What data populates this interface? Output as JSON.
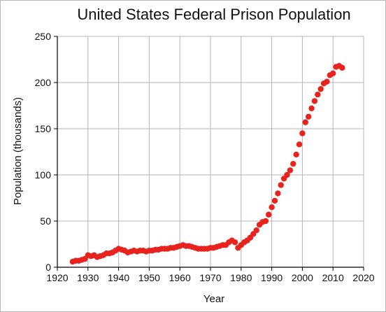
{
  "chart_data": {
    "type": "scatter",
    "title": "United States Federal Prison Population",
    "xlabel": "Year",
    "ylabel": "Population (thousands)",
    "xlim": [
      1920,
      2020
    ],
    "ylim": [
      0,
      250
    ],
    "x_ticks": [
      1920,
      1930,
      1940,
      1950,
      1960,
      1970,
      1980,
      1990,
      2000,
      2010,
      2020
    ],
    "y_ticks": [
      0,
      50,
      100,
      150,
      200,
      250
    ],
    "grid": true,
    "marker_color": "#e8231e",
    "series": [
      {
        "x": [
          1925,
          1926,
          1927,
          1928,
          1929,
          1930,
          1931,
          1932,
          1933,
          1934,
          1935,
          1936,
          1937,
          1938,
          1939,
          1940,
          1941,
          1942,
          1943,
          1944,
          1945,
          1946,
          1947,
          1948,
          1949,
          1950,
          1951,
          1952,
          1953,
          1954,
          1955,
          1956,
          1957,
          1958,
          1959,
          1960,
          1961,
          1962,
          1963,
          1964,
          1965,
          1966,
          1967,
          1968,
          1969,
          1970,
          1971,
          1972,
          1973,
          1974,
          1975,
          1976,
          1977,
          1978,
          1979,
          1980,
          1981,
          1982,
          1983,
          1984,
          1985,
          1986,
          1987,
          1988,
          1989,
          1990,
          1991,
          1992,
          1993,
          1994,
          1995,
          1996,
          1997,
          1998,
          1999,
          2000,
          2001,
          2002,
          2003,
          2004,
          2005,
          2006,
          2007,
          2008,
          2009,
          2010,
          2011,
          2012,
          2013
        ],
        "y": [
          6,
          7,
          7,
          8,
          9,
          13,
          12,
          13,
          11,
          12,
          13,
          15,
          15,
          16,
          18,
          20,
          19,
          18,
          16,
          17,
          18,
          17,
          18,
          18,
          17,
          18,
          18,
          19,
          19,
          20,
          20,
          20,
          21,
          21,
          22,
          23,
          24,
          23,
          23,
          22,
          21,
          20,
          20,
          20,
          20,
          21,
          21,
          22,
          23,
          24,
          24,
          27,
          29,
          27,
          21,
          24,
          27,
          29,
          32,
          36,
          40,
          46,
          49,
          50,
          57,
          65,
          72,
          80,
          89,
          96,
          100,
          105,
          112,
          122,
          133,
          145,
          157,
          163,
          172,
          180,
          187,
          193,
          199,
          201,
          208,
          210,
          217,
          218,
          216
        ]
      }
    ]
  }
}
